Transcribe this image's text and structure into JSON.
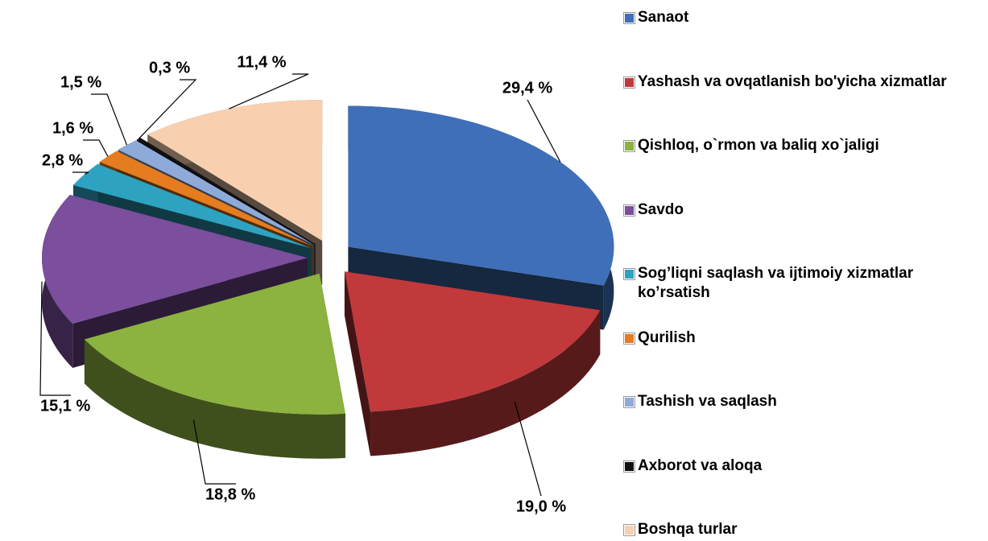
{
  "chart_data": {
    "type": "pie",
    "categories": [
      "Sanaot",
      "Yashash va ovqatlanish bo'yicha xizmatlar",
      "Qishloq, o`rmon va baliq xo`jaligi",
      "Savdo",
      "Sog’liqni saqlash va ijtimoiy xizmatlar ko’rsatish",
      "Qurilish",
      "Tashish va saqlash",
      "Axborot va aloqa",
      "Boshqa  turlar"
    ],
    "values": [
      29.4,
      19.0,
      18.8,
      15.1,
      2.8,
      1.6,
      1.5,
      0.3,
      11.4
    ],
    "value_labels": [
      "29,4 %",
      "19,0 %",
      "18,8 %",
      "15,1 %",
      "2,8 %",
      "1,6 %",
      "1,5 %",
      "0,3 %",
      "11,4 %"
    ],
    "colors": [
      "#3f6fb8",
      "#c1393b",
      "#8cb23f",
      "#7b4e9e",
      "#2ea3c1",
      "#e57c1f",
      "#8eaad8",
      "#111111",
      "#f8d0b0"
    ],
    "legend": "right"
  }
}
